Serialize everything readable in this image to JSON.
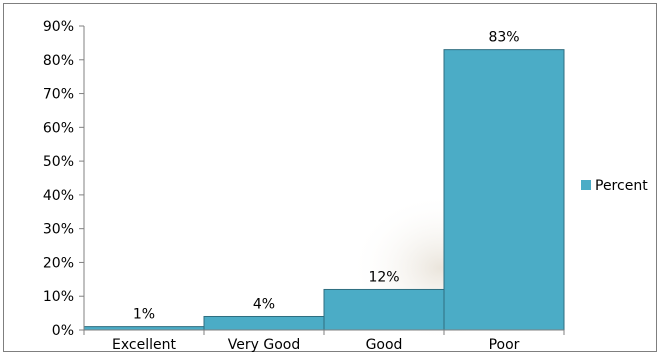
{
  "chart_data": {
    "type": "bar",
    "categories": [
      "Excellent",
      "Very Good",
      "Good",
      "Poor"
    ],
    "series": [
      {
        "name": "Percent",
        "values": [
          1,
          4,
          12,
          83
        ],
        "color": "#4bacc6"
      }
    ],
    "data_labels": [
      "1%",
      "4%",
      "12%",
      "83%"
    ],
    "y_ticks": [
      "0%",
      "10%",
      "20%",
      "30%",
      "40%",
      "50%",
      "60%",
      "70%",
      "80%",
      "90%"
    ],
    "ylim": [
      0,
      90
    ],
    "title": "",
    "xlabel": "",
    "ylabel": "",
    "grid": false,
    "legend_position": "right"
  }
}
